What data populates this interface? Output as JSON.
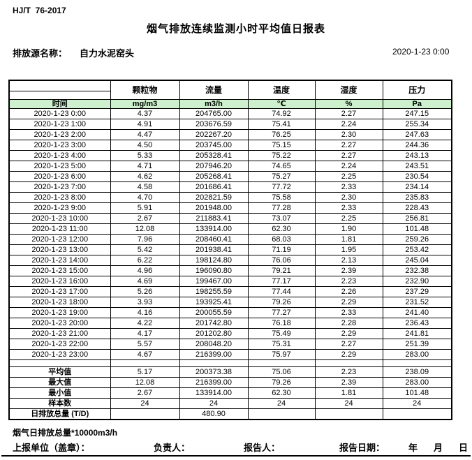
{
  "header": {
    "standard": "HJ/T  76-2017",
    "title": "烟气排放连续监测小时平均值日报表",
    "source_label": "排放源名称：",
    "source_name": "自力水泥窑头",
    "datetime": "2020-1-23 0:00"
  },
  "table": {
    "time_header": "时间",
    "columns": [
      "颗粒物",
      "流量",
      "温度",
      "湿度",
      "压力"
    ],
    "units": [
      "mg/m3",
      "m3/h",
      "℃",
      "%",
      "Pa"
    ],
    "rows": [
      {
        "time": "2020-1-23 0:00",
        "values": [
          "4.37",
          "204765.00",
          "74.92",
          "2.27",
          "247.15"
        ]
      },
      {
        "time": "2020-1-23 1:00",
        "values": [
          "4.91",
          "203676.59",
          "75.41",
          "2.24",
          "255.34"
        ]
      },
      {
        "time": "2020-1-23 2:00",
        "values": [
          "4.47",
          "202267.20",
          "76.25",
          "2.30",
          "247.63"
        ]
      },
      {
        "time": "2020-1-23 3:00",
        "values": [
          "4.50",
          "203745.00",
          "75.15",
          "2.27",
          "244.36"
        ]
      },
      {
        "time": "2020-1-23 4:00",
        "values": [
          "5.33",
          "205328.41",
          "75.22",
          "2.27",
          "243.13"
        ]
      },
      {
        "time": "2020-1-23 5:00",
        "values": [
          "4.71",
          "207946.20",
          "74.65",
          "2.24",
          "243.51"
        ]
      },
      {
        "time": "2020-1-23 6:00",
        "values": [
          "4.62",
          "205268.41",
          "75.27",
          "2.25",
          "230.54"
        ]
      },
      {
        "time": "2020-1-23 7:00",
        "values": [
          "4.58",
          "201686.41",
          "77.72",
          "2.33",
          "234.14"
        ]
      },
      {
        "time": "2020-1-23 8:00",
        "values": [
          "4.70",
          "202821.59",
          "75.58",
          "2.30",
          "235.83"
        ]
      },
      {
        "time": "2020-1-23 9:00",
        "values": [
          "5.91",
          "201948.00",
          "77.28",
          "2.33",
          "228.43"
        ]
      },
      {
        "time": "2020-1-23 10:00",
        "values": [
          "2.67",
          "211883.41",
          "73.07",
          "2.25",
          "256.81"
        ]
      },
      {
        "time": "2020-1-23 11:00",
        "values": [
          "12.08",
          "133914.00",
          "62.30",
          "1.90",
          "101.48"
        ]
      },
      {
        "time": "2020-1-23 12:00",
        "values": [
          "7.96",
          "208460.41",
          "68.03",
          "1.81",
          "259.26"
        ]
      },
      {
        "time": "2020-1-23 13:00",
        "values": [
          "5.42",
          "201938.41",
          "71.19",
          "1.95",
          "253.42"
        ]
      },
      {
        "time": "2020-1-23 14:00",
        "values": [
          "6.22",
          "198124.80",
          "76.06",
          "2.13",
          "245.04"
        ]
      },
      {
        "time": "2020-1-23 15:00",
        "values": [
          "4.96",
          "196090.80",
          "79.21",
          "2.39",
          "232.38"
        ]
      },
      {
        "time": "2020-1-23 16:00",
        "values": [
          "4.69",
          "199467.00",
          "77.17",
          "2.23",
          "232.90"
        ]
      },
      {
        "time": "2020-1-23 17:00",
        "values": [
          "5.26",
          "198255.59",
          "77.44",
          "2.26",
          "237.29"
        ]
      },
      {
        "time": "2020-1-23 18:00",
        "values": [
          "3.93",
          "193925.41",
          "79.26",
          "2.29",
          "231.52"
        ]
      },
      {
        "time": "2020-1-23 19:00",
        "values": [
          "4.16",
          "200055.59",
          "77.27",
          "2.33",
          "241.40"
        ]
      },
      {
        "time": "2020-1-23 20:00",
        "values": [
          "4.22",
          "201742.80",
          "76.18",
          "2.28",
          "236.43"
        ]
      },
      {
        "time": "2020-1-23 21:00",
        "values": [
          "4.17",
          "201202.80",
          "75.49",
          "2.29",
          "241.81"
        ]
      },
      {
        "time": "2020-1-23 22:00",
        "values": [
          "5.57",
          "208048.20",
          "75.31",
          "2.27",
          "251.39"
        ]
      },
      {
        "time": "2020-1-23 23:00",
        "values": [
          "4.67",
          "216399.00",
          "75.97",
          "2.29",
          "283.00"
        ]
      }
    ],
    "summary": [
      {
        "label": "平均值",
        "values": [
          "5.17",
          "200373.38",
          "75.06",
          "2.23",
          "238.09"
        ]
      },
      {
        "label": "最大值",
        "values": [
          "12.08",
          "216399.00",
          "79.26",
          "2.39",
          "283.00"
        ]
      },
      {
        "label": "最小值",
        "values": [
          "2.67",
          "133914.00",
          "62.30",
          "1.81",
          "101.48"
        ]
      },
      {
        "label": "样本数",
        "values": [
          "24",
          "24",
          "24",
          "24",
          "24"
        ]
      },
      {
        "label": "日排放总量 (T/D)",
        "values": [
          "",
          "480.90",
          "",
          "",
          ""
        ]
      }
    ]
  },
  "footer": {
    "note": "烟气日排放总量*10000m3/h",
    "unit_label": "上报单位（盖章）：",
    "manager_label": "负责人：",
    "reporter_label": "报告人：",
    "report_date_label": "报告日期：",
    "year": "年",
    "month": "月",
    "day": "日"
  },
  "colors": {
    "header_green": "#cdf0cd"
  }
}
